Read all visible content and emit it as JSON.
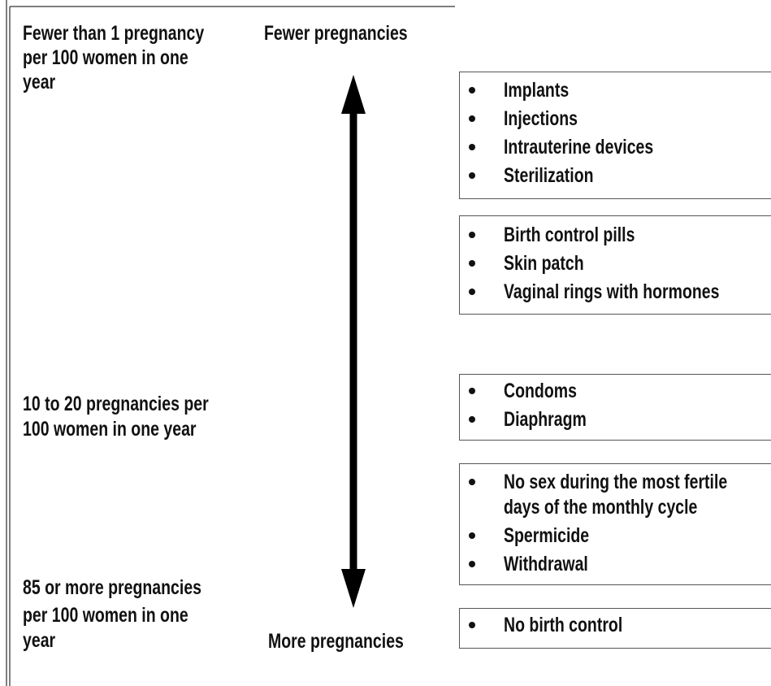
{
  "scale": {
    "top_label": [
      "Fewer than 1 pregnancy",
      "per 100 women in one",
      "year"
    ],
    "middle_label": [
      "10 to 20 pregnancies per",
      "100 women in one year"
    ],
    "bottom_label": [
      "85 or more pregnancies",
      "per 100 women in one",
      "year"
    ],
    "arrow_top": "Fewer pregnancies",
    "arrow_bottom": "More pregnancies"
  },
  "groups": [
    {
      "items": [
        [
          "Implants"
        ],
        [
          "Injections"
        ],
        [
          "Intrauterine devices"
        ],
        [
          "Sterilization"
        ]
      ]
    },
    {
      "items": [
        [
          "Birth control pills"
        ],
        [
          "Skin patch"
        ],
        [
          "Vaginal rings with hormones"
        ]
      ]
    },
    {
      "items": [
        [
          "Condoms"
        ],
        [
          "Diaphragm"
        ]
      ]
    },
    {
      "items": [
        [
          "No sex during the most fertile",
          "days of the monthly cycle"
        ],
        [
          "Spermicide"
        ],
        [
          "Withdrawal"
        ]
      ]
    },
    {
      "items": [
        [
          "No birth control"
        ]
      ]
    }
  ]
}
